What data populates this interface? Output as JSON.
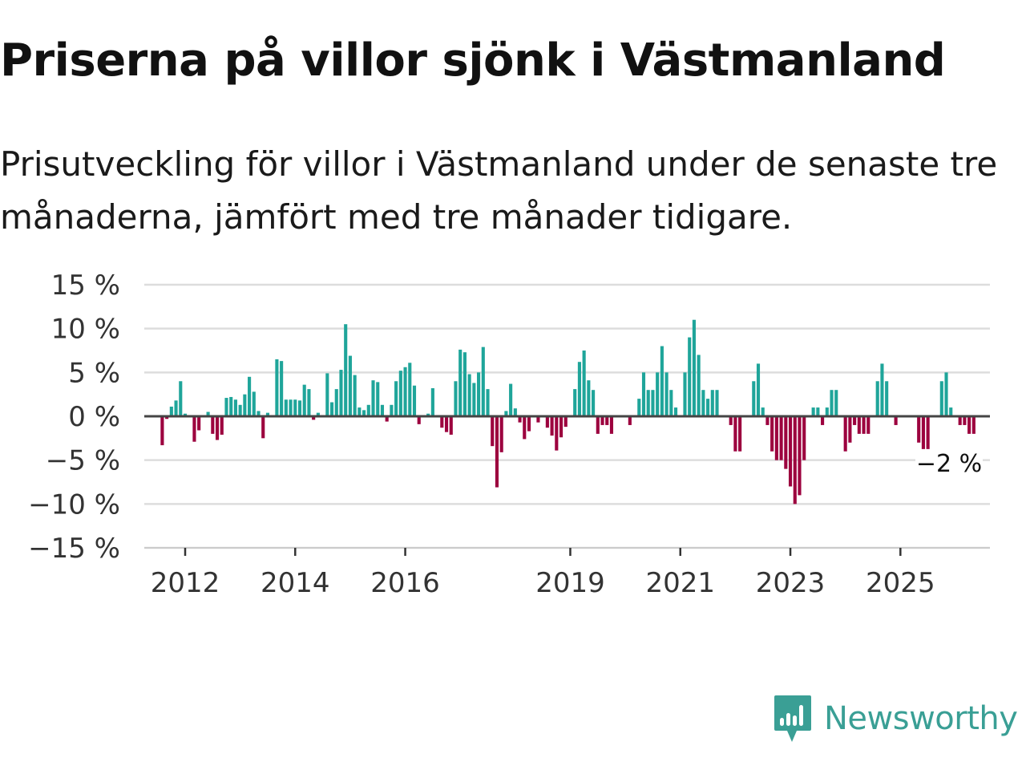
{
  "title": "Priserna på villor sjönk i Västmanland",
  "subtitle": "Prisutveckling för villor i Västmanland under de senaste tre månaderna, jämfört med tre månader tidigare.",
  "brand": {
    "name": "Newsworthy",
    "color": "#3a9f95",
    "icon": "newsworthy-logo-icon"
  },
  "chart_data": {
    "type": "bar",
    "x_start": "2011-08",
    "interval": "month",
    "xticks": [
      {
        "label": "2012",
        "year": 2012
      },
      {
        "label": "2014",
        "year": 2014
      },
      {
        "label": "2016",
        "year": 2016
      },
      {
        "label": "2019",
        "year": 2019
      },
      {
        "label": "2021",
        "year": 2021
      },
      {
        "label": "2023",
        "year": 2023
      },
      {
        "label": "2025",
        "year": 2025
      }
    ],
    "yticks": [
      15,
      10,
      5,
      0,
      -5,
      -10,
      -15
    ],
    "ytick_labels": [
      "15 %",
      "10 %",
      "5 %",
      "0 %",
      "−5 %",
      "−10 %",
      "−15 %"
    ],
    "ylim": [
      -15,
      15
    ],
    "unit": "%",
    "colors": {
      "positive": "#1fa59a",
      "negative": "#9c003e",
      "grid": "#dddddd",
      "zero": "#444444",
      "axis_text": "#333333"
    },
    "last_label": "−2 %",
    "values": [
      -3.3,
      -0.3,
      1.1,
      1.8,
      4.0,
      0.3,
      0.0,
      -2.9,
      -1.6,
      0.0,
      0.5,
      -2.0,
      -2.7,
      -2.1,
      2.1,
      2.2,
      1.9,
      1.3,
      2.5,
      4.5,
      2.8,
      0.6,
      -2.5,
      0.4,
      0.0,
      6.5,
      6.3,
      1.9,
      1.9,
      1.9,
      1.8,
      3.6,
      3.1,
      -0.4,
      0.4,
      0.0,
      4.9,
      1.6,
      3.1,
      5.3,
      10.5,
      6.9,
      4.7,
      1.0,
      0.7,
      1.3,
      4.1,
      3.9,
      1.3,
      -0.6,
      1.3,
      4.0,
      5.2,
      5.6,
      6.1,
      3.5,
      -0.9,
      0.0,
      0.3,
      3.2,
      0.0,
      -1.3,
      -1.8,
      -2.1,
      4.0,
      7.6,
      7.3,
      4.8,
      3.8,
      5.0,
      7.9,
      3.1,
      -3.4,
      -8.1,
      -4.1,
      0.6,
      3.7,
      0.9,
      -0.7,
      -2.6,
      -1.7,
      0.0,
      -0.7,
      0.0,
      -1.3,
      -2.2,
      -3.9,
      -2.4,
      -1.2,
      0.0,
      3.1,
      6.2,
      7.5,
      4.1,
      3.0,
      -2.0,
      -1.0,
      -1.0,
      -2.0,
      0.0,
      0.0,
      0.0,
      -1.0,
      0.0,
      2.0,
      5.0,
      3.0,
      3.0,
      5.0,
      8.0,
      5.0,
      3.0,
      1.0,
      0.0,
      5.0,
      9.0,
      11.0,
      7.0,
      3.0,
      2.0,
      3.0,
      3.0,
      0.0,
      0.0,
      -1.0,
      -4.0,
      -4.0,
      0.0,
      0.0,
      4.0,
      6.0,
      1.0,
      -1.0,
      -4.0,
      -5.0,
      -5.0,
      -6.0,
      -8.0,
      -10.0,
      -9.0,
      -5.0,
      0.0,
      1.0,
      1.0,
      -1.0,
      1.0,
      3.0,
      3.0,
      0.0,
      -4.0,
      -3.0,
      -1.0,
      -2.0,
      -2.0,
      -2.0,
      0.0,
      4.0,
      6.0,
      4.0,
      0.0,
      -1.0,
      0.0,
      0.0,
      0.0,
      0.0,
      -3.0,
      -4.0,
      -4.0,
      0.0,
      0.0,
      4.0,
      5.0,
      1.0,
      0.0,
      -1.0,
      -1.0,
      -2.0,
      -2.0
    ]
  }
}
